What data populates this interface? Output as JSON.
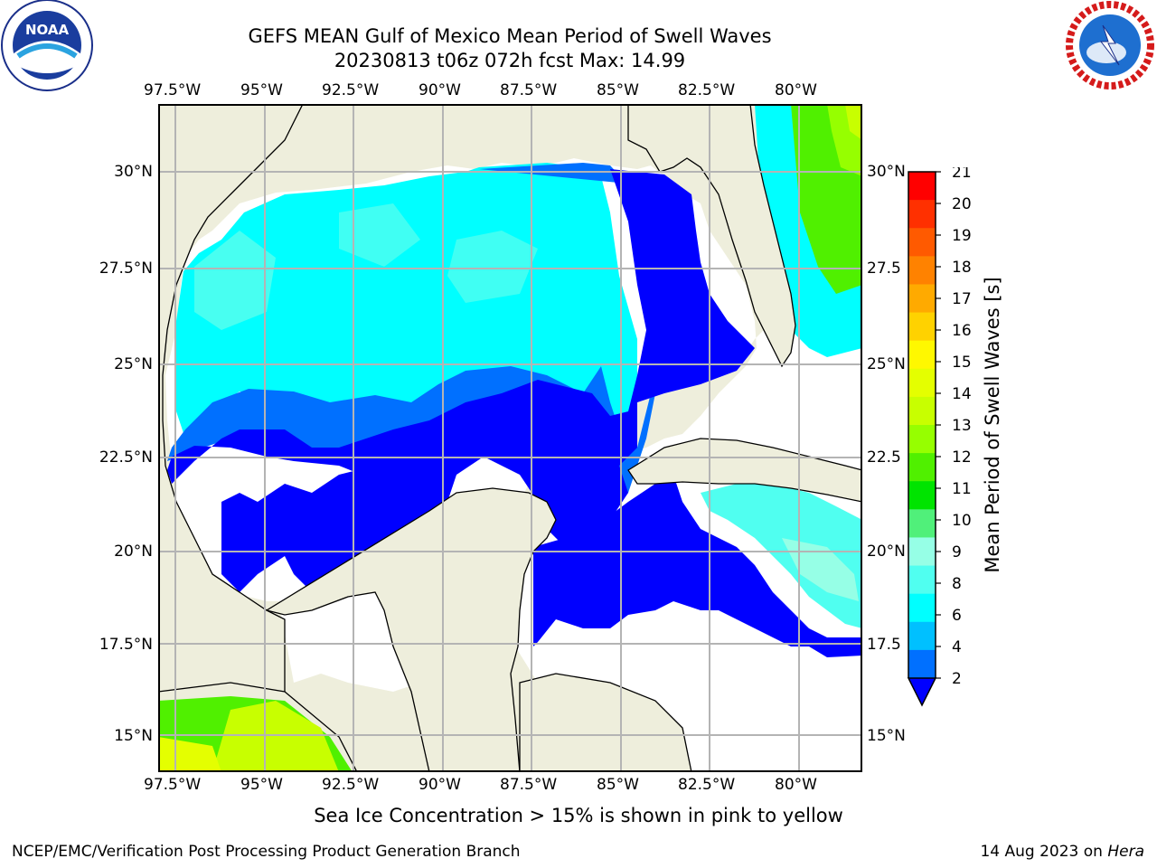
{
  "title": {
    "line1": "GEFS MEAN Gulf of Mexico Mean Period of Swell Waves",
    "line2": "20230813 t06z 072h fcst   Max: 14.99"
  },
  "logos": {
    "left": {
      "text": "NOAA",
      "icon": "noaa-logo-icon"
    },
    "right": {
      "text": "NATIONAL WEATHER SERVICE",
      "icon": "nws-logo-icon"
    }
  },
  "map": {
    "lon_ticks": [
      "97.5°W",
      "95°W",
      "92.5°W",
      "90°W",
      "87.5°W",
      "85°W",
      "82.5°W",
      "80°W"
    ],
    "lat_ticks_left": [
      "30°N",
      "27.5°N",
      "25°N",
      "22.5°N",
      "20°N",
      "17.5°N",
      "15°N"
    ],
    "lat_ticks_right": [
      "30°N",
      "27.5",
      "25°N",
      "22.5",
      "20°N",
      "17.5",
      "15°N"
    ],
    "colors": {
      "land": "#eeeedc",
      "ocean_unfilled": "#ffffff",
      "grid": "#b4b4b4",
      "coast": "#000000"
    }
  },
  "colorbar": {
    "label": "Mean Period of Swell Waves [s]",
    "ticks": [
      "21",
      "20",
      "19",
      "18",
      "17",
      "16",
      "15",
      "14",
      "13",
      "12",
      "11",
      "10",
      "9",
      "8",
      "6",
      "4",
      "2"
    ],
    "colors": [
      "#ff0000",
      "#ff3000",
      "#ff5a00",
      "#ff8200",
      "#ffaa00",
      "#ffd200",
      "#fff800",
      "#e4ff00",
      "#c8ff00",
      "#96ff00",
      "#50f000",
      "#00e400",
      "#50f07a",
      "#96ffe6",
      "#50fff0",
      "#00ffff",
      "#00c0ff",
      "#0070ff",
      "#0000ff"
    ]
  },
  "note": "Sea Ice Concentration > 15% is shown in pink to yellow",
  "footer": {
    "left": "NCEP/EMC/Verification Post Processing Product Generation Branch",
    "right_date": "14 Aug 2023 on ",
    "right_host": "Hera"
  }
}
